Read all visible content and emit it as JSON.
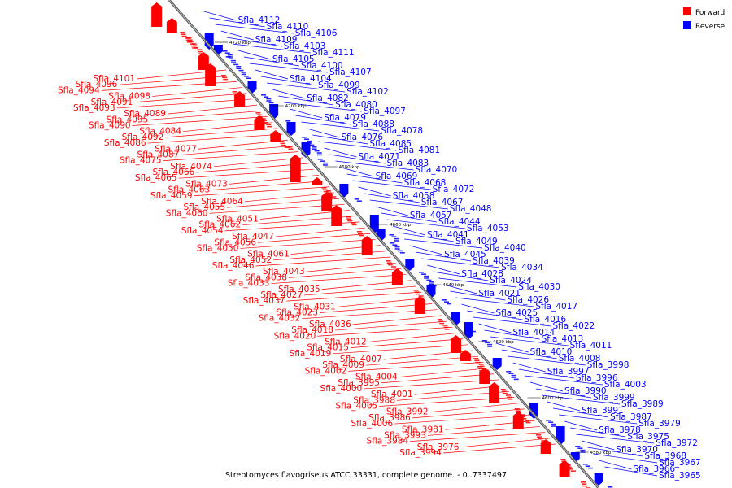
{
  "caption": "Streptomyces flavogriseus ATCC 33331, complete genome. - 0..7337497",
  "legend": [
    {
      "label": "Forward",
      "color": "#ff0000"
    },
    {
      "label": "Reverse",
      "color": "#0000ff"
    }
  ],
  "colors": {
    "forward": "#ff0000",
    "reverse": "#0000ff",
    "axis": "#808080"
  },
  "scale": [
    "4720 kbp",
    "4700 kbp",
    "4680 kbp",
    "4660 kbp",
    "4640 kbp",
    "4620 kbp",
    "4600 kbp",
    "4580 kbp"
  ],
  "reverse_labels": [
    "Sfla_4112",
    "Sfla_4110",
    "Sfla_4106",
    "Sfla_4109",
    "Sfla_4103",
    "Sfla_4111",
    "Sfla_4105",
    "Sfla_4100",
    "Sfla_4107",
    "Sfla_4104",
    "Sfla_4099",
    "Sfla_4102",
    "Sfla_4082",
    "Sfla_4080",
    "Sfla_4097",
    "Sfla_4079",
    "Sfla_4088",
    "Sfla_4078",
    "Sfla_4076",
    "Sfla_4085",
    "Sfla_4081",
    "Sfla_4071",
    "Sfla_4083",
    "Sfla_4070",
    "Sfla_4069",
    "Sfla_4068",
    "Sfla_4072",
    "Sfla_4058",
    "Sfla_4067",
    "Sfla_4048",
    "Sfla_4057",
    "Sfla_4044",
    "Sfla_4053",
    "Sfla_4041",
    "Sfla_4049",
    "Sfla_4040",
    "Sfla_4045",
    "Sfla_4039",
    "Sfla_4034",
    "Sfla_4028",
    "Sfla_4024",
    "Sfla_4030",
    "Sfla_4021",
    "Sfla_4026",
    "Sfla_4017",
    "Sfla_4025",
    "Sfla_4016",
    "Sfla_4022",
    "Sfla_4014",
    "Sfla_4013",
    "Sfla_4011",
    "Sfla_4010",
    "Sfla_4008",
    "Sfla_3998",
    "Sfla_3997",
    "Sfla_3996",
    "Sfla_4003",
    "Sfla_3990",
    "Sfla_3999",
    "Sfla_3989",
    "Sfla_3991",
    "Sfla_3987",
    "Sfla_3979",
    "Sfla_3978",
    "Sfla_3975",
    "Sfla_3972",
    "Sfla_3970",
    "Sfla_3968",
    "Sfla_3967",
    "Sfla_3966",
    "Sfla_3965"
  ],
  "forward_labels": [
    "Sfla_4101",
    "Sfla_4096",
    "Sfla_4094",
    "Sfla_4098",
    "Sfla_4091",
    "Sfla_4093",
    "Sfla_4089",
    "Sfla_4095",
    "Sfla_4090",
    "Sfla_4084",
    "Sfla_4092",
    "Sfla_4086",
    "Sfla_4077",
    "Sfla_4087",
    "Sfla_4075",
    "Sfla_4074",
    "Sfla_4066",
    "Sfla_4065",
    "Sfla_4073",
    "Sfla_4063",
    "Sfla_4059",
    "Sfla_4064",
    "Sfla_4055",
    "Sfla_4060",
    "Sfla_4051",
    "Sfla_4062",
    "Sfla_4054",
    "Sfla_4047",
    "Sfla_4056",
    "Sfla_4050",
    "Sfla_4061",
    "Sfla_4052",
    "Sfla_4046",
    "Sfla_4043",
    "Sfla_4038",
    "Sfla_4033",
    "Sfla_4035",
    "Sfla_4027",
    "Sfla_4037",
    "Sfla_4031",
    "Sfla_4023",
    "Sfla_4032",
    "Sfla_4036",
    "Sfla_4018",
    "Sfla_4020",
    "Sfla_4012",
    "Sfla_4015",
    "Sfla_4019",
    "Sfla_4007",
    "Sfla_4009",
    "Sfla_4002",
    "Sfla_4004",
    "Sfla_3995",
    "Sfla_4000",
    "Sfla_4001",
    "Sfla_3988",
    "Sfla_4005",
    "Sfla_3992",
    "Sfla_3986",
    "Sfla_4006",
    "Sfla_3981",
    "Sfla_3993",
    "Sfla_3984",
    "Sfla_3976",
    "Sfla_3994"
  ]
}
